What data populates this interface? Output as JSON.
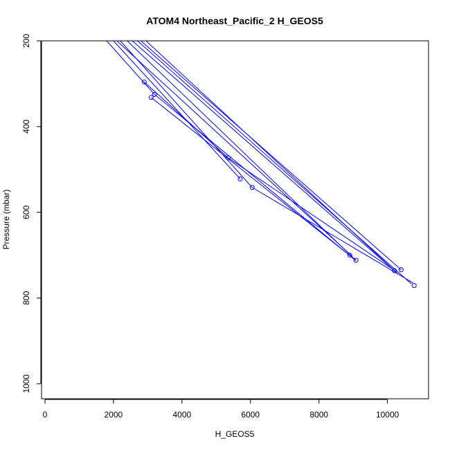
{
  "chart_data": {
    "type": "line",
    "title": "ATOM4 Northeast_Pacific_2 H_GEOS5",
    "xlabel": "H_GEOS5",
    "ylabel": "Pressure (mbar)",
    "xlim": [
      -100,
      11200
    ],
    "ylim": [
      1035,
      200
    ],
    "y_reversed": true,
    "grid": false,
    "line_color": "#0000ff",
    "x_ticks": [
      0,
      2000,
      4000,
      6000,
      8000,
      10000
    ],
    "y_ticks": [
      200,
      400,
      600,
      800,
      1000
    ],
    "segments": [
      [
        [
          1800,
          200
        ],
        [
          3200,
          325
        ]
      ],
      [
        [
          2000,
          200
        ],
        [
          5700,
          522
        ]
      ],
      [
        [
          2200,
          200
        ],
        [
          6050,
          542
        ]
      ],
      [
        [
          2100,
          200
        ],
        [
          8950,
          701
        ]
      ],
      [
        [
          2400,
          200
        ],
        [
          9080,
          712
        ]
      ],
      [
        [
          2550,
          200
        ],
        [
          10200,
          736
        ]
      ],
      [
        [
          2700,
          200
        ],
        [
          10700,
          767
        ]
      ],
      [
        [
          2800,
          200
        ],
        [
          10400,
          734
        ]
      ],
      [
        [
          2950,
          200
        ],
        [
          10300,
          743
        ]
      ],
      [
        [
          2900,
          296
        ],
        [
          5350,
          473
        ]
      ],
      [
        [
          3100,
          332
        ],
        [
          8950,
          704
        ]
      ],
      [
        [
          3200,
          325
        ],
        [
          9080,
          713
        ]
      ],
      [
        [
          5350,
          473
        ],
        [
          10250,
          738
        ]
      ],
      [
        [
          6050,
          542
        ],
        [
          10750,
          765
        ]
      ]
    ],
    "points": [
      {
        "x": 2900,
        "y": 296
      },
      {
        "x": 3100,
        "y": 332
      },
      {
        "x": 3200,
        "y": 325
      },
      {
        "x": 5350,
        "y": 473
      },
      {
        "x": 5700,
        "y": 522
      },
      {
        "x": 6050,
        "y": 542
      },
      {
        "x": 8900,
        "y": 700
      },
      {
        "x": 9080,
        "y": 712
      },
      {
        "x": 10200,
        "y": 736
      },
      {
        "x": 10400,
        "y": 734
      },
      {
        "x": 10780,
        "y": 771
      }
    ]
  }
}
